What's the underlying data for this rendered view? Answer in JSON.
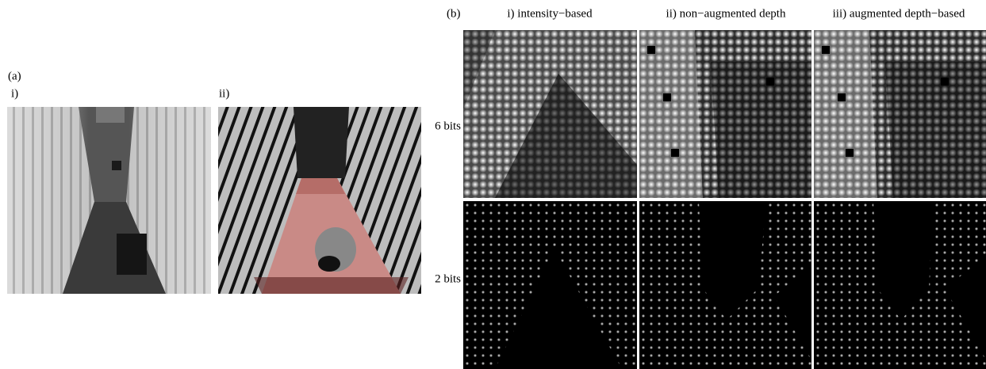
{
  "panel_a": {
    "label": "(a)",
    "subpanels": [
      "i)",
      "ii)"
    ]
  },
  "panel_b": {
    "label": "(b)",
    "columns": [
      "i) intensity−based",
      "ii) non−augmented depth",
      "iii) augmented depth−based"
    ],
    "rows": [
      "6 bits",
      "2 bits"
    ]
  }
}
